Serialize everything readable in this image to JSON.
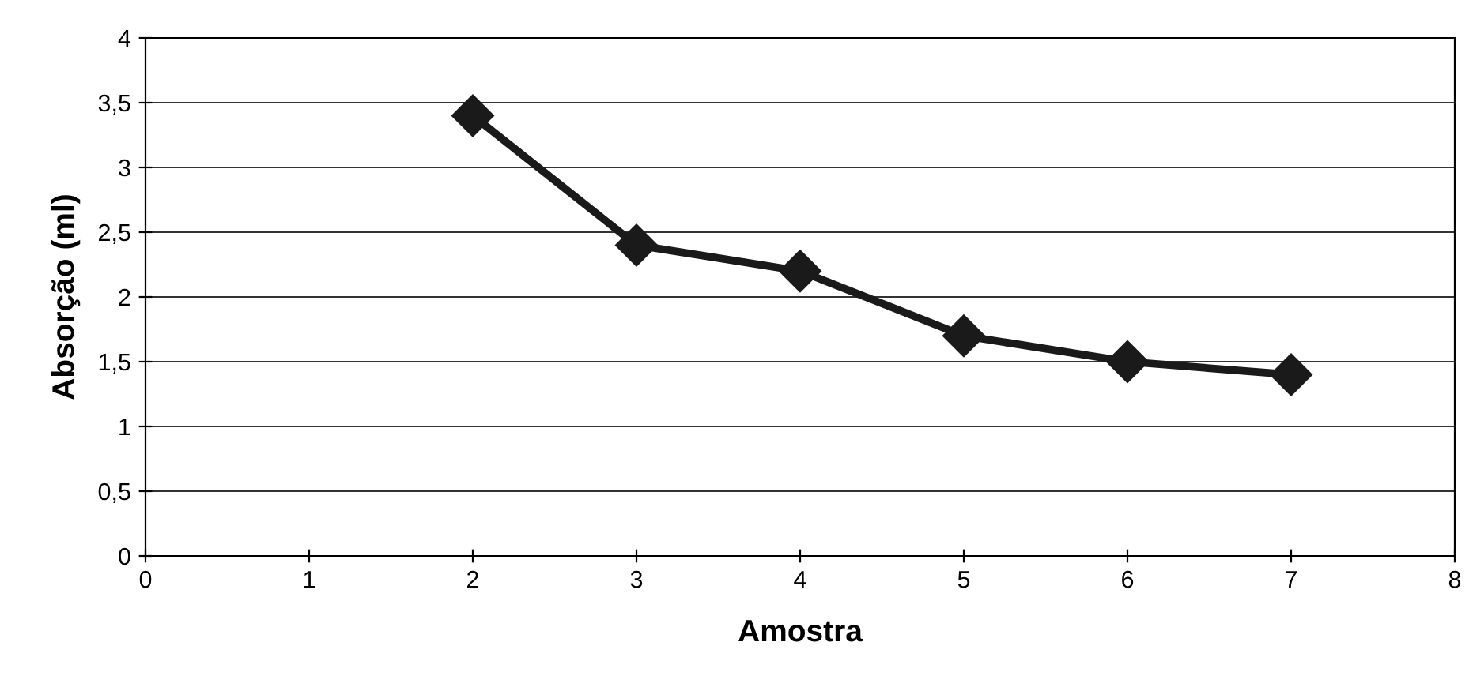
{
  "chart_data": {
    "type": "line",
    "xlabel": "Amostra",
    "ylabel": "Absorção (ml)",
    "series": [
      {
        "color": "#1a1a1a",
        "x": [
          2,
          3,
          4,
          5,
          6,
          7
        ],
        "values": [
          3.4,
          2.4,
          2.2,
          1.7,
          1.5,
          1.4
        ]
      }
    ],
    "xlim": [
      0,
      8
    ],
    "xticks": [
      0,
      1,
      2,
      3,
      4,
      5,
      6,
      7,
      8
    ],
    "ylim": [
      0,
      4
    ],
    "yticks": [
      0,
      {
        "value": 0.5,
        "label": "0,5"
      },
      1,
      {
        "value": 1.5,
        "label": "1,5"
      },
      2,
      {
        "value": 2.5,
        "label": "2,5"
      },
      3,
      {
        "value": 3.5,
        "label": "3,5"
      },
      4
    ],
    "grid": "y",
    "marker": "diamond",
    "line_style": "solid"
  }
}
